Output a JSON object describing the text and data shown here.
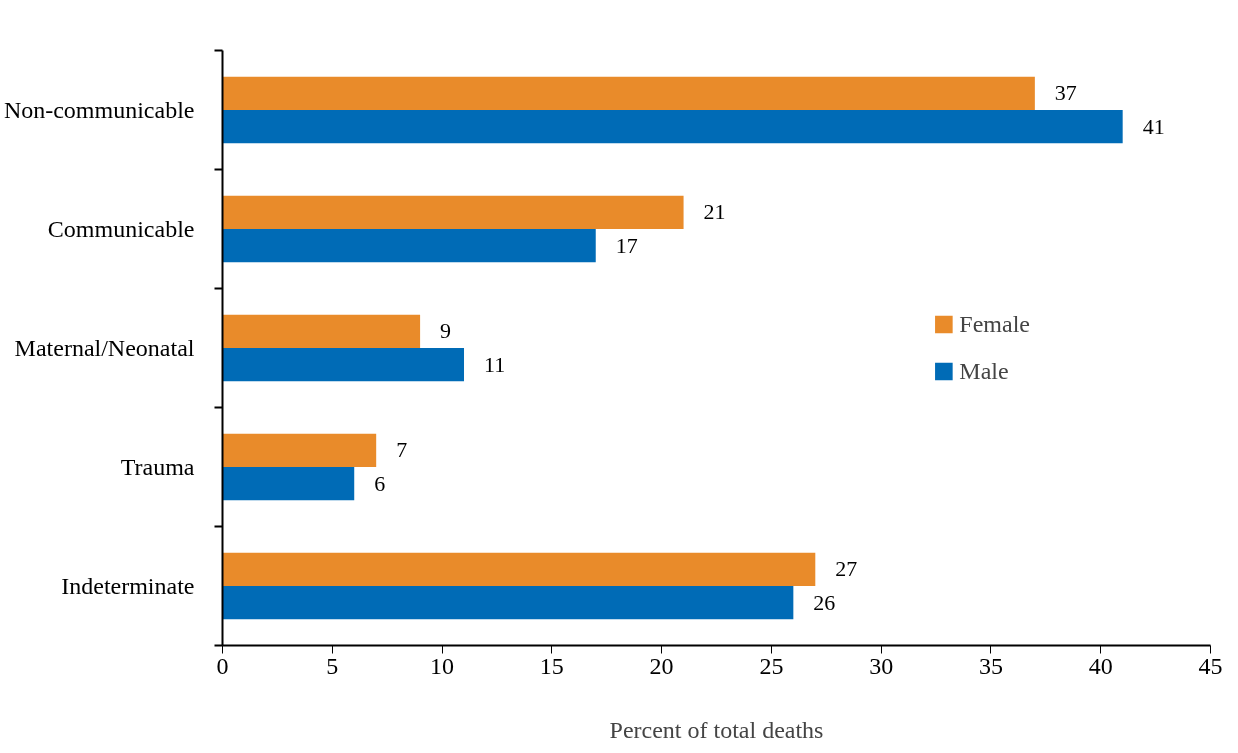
{
  "chart_data": {
    "type": "bar",
    "orientation": "horizontal",
    "xlabel": "Percent of total deaths",
    "categories": [
      "Non-communicable",
      "Communicable",
      "Maternal/Neonatal",
      "Trauma",
      "Indeterminate"
    ],
    "series": [
      {
        "name": "Female",
        "color": "#e98b2a",
        "values": [
          37,
          21,
          9,
          7,
          27
        ]
      },
      {
        "name": "Male",
        "color": "#006bb6",
        "values": [
          41,
          17,
          11,
          6,
          26
        ]
      }
    ],
    "xlim": [
      0,
      45
    ],
    "xticks": [
      0,
      5,
      10,
      15,
      20,
      25,
      30,
      35,
      40,
      45
    ],
    "data_labels": true,
    "grid": false,
    "legend": "right"
  }
}
